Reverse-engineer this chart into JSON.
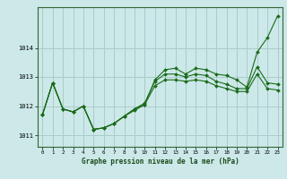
{
  "title": "Graphe pression niveau de la mer (hPa)",
  "bg_color": "#cce8e8",
  "grid_color": "#aacccc",
  "line_color": "#1a6b1a",
  "marker_color": "#1a6b1a",
  "xlim": [
    -0.5,
    23.5
  ],
  "ylim": [
    1010.6,
    1015.4
  ],
  "yticks": [
    1011,
    1012,
    1013,
    1014
  ],
  "xticks": [
    0,
    1,
    2,
    3,
    4,
    5,
    6,
    7,
    8,
    9,
    10,
    11,
    12,
    13,
    14,
    15,
    16,
    17,
    18,
    19,
    20,
    21,
    22,
    23
  ],
  "series1_x": [
    0,
    1,
    2,
    3,
    4,
    5,
    6,
    7,
    8,
    9,
    10,
    11,
    12,
    13,
    14,
    15,
    16,
    17,
    18,
    19,
    20,
    21,
    22,
    23
  ],
  "series1_y": [
    1011.7,
    1012.8,
    1011.9,
    1011.8,
    1012.0,
    1011.2,
    1011.25,
    1011.4,
    1011.65,
    1011.85,
    1012.05,
    1012.9,
    1013.25,
    1013.3,
    1013.1,
    1013.3,
    1013.25,
    1013.1,
    1013.05,
    1012.9,
    1012.65,
    1013.85,
    1014.35,
    1015.1
  ],
  "series2_x": [
    0,
    1,
    2,
    3,
    4,
    5,
    6,
    7,
    8,
    9,
    10,
    11,
    12,
    13,
    14,
    15,
    16,
    17,
    18,
    19,
    20,
    21,
    22,
    23
  ],
  "series2_y": [
    1011.7,
    1012.8,
    1011.9,
    1011.8,
    1012.0,
    1011.2,
    1011.25,
    1011.4,
    1011.65,
    1011.9,
    1012.1,
    1012.85,
    1013.1,
    1013.1,
    1013.0,
    1013.1,
    1013.05,
    1012.85,
    1012.75,
    1012.6,
    1012.6,
    1013.35,
    1012.8,
    1012.75
  ],
  "series3_x": [
    0,
    1,
    2,
    3,
    4,
    5,
    6,
    7,
    8,
    9,
    10,
    11,
    12,
    13,
    14,
    15,
    16,
    17,
    18,
    19,
    20,
    21,
    22,
    23
  ],
  "series3_y": [
    1011.7,
    1012.8,
    1011.9,
    1011.8,
    1012.0,
    1011.2,
    1011.25,
    1011.4,
    1011.65,
    1011.9,
    1012.05,
    1012.7,
    1012.9,
    1012.9,
    1012.85,
    1012.9,
    1012.85,
    1012.7,
    1012.6,
    1012.5,
    1012.5,
    1013.1,
    1012.6,
    1012.55
  ]
}
